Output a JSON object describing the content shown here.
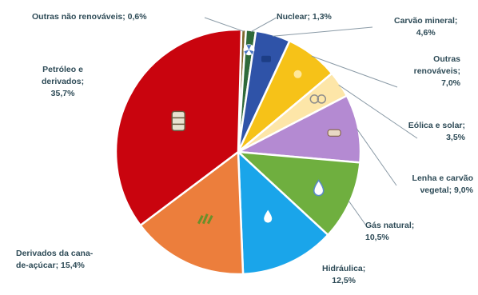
{
  "chart_data": {
    "type": "pie",
    "title": "",
    "slices": [
      {
        "name": "Outras não renováveis",
        "value": 0.6,
        "color": "#7f6a2e",
        "label_lines": [
          "Outras não renováveis; 0,6%"
        ]
      },
      {
        "name": "Nuclear",
        "value": 1.3,
        "color": "#2f6a3a",
        "label_lines": [
          "Nuclear; 1,3%"
        ]
      },
      {
        "name": "Carvão mineral",
        "value": 4.6,
        "color": "#2f53a8",
        "label_lines": [
          "Carvão mineral;",
          "4,6%"
        ]
      },
      {
        "name": "Outras renováveis",
        "value": 7.0,
        "color": "#f6c218",
        "label_lines": [
          "Outras",
          "renováveis;",
          "7,0%"
        ]
      },
      {
        "name": "Eólica e solar",
        "value": 3.5,
        "color": "#fde6a8",
        "label_lines": [
          "Eólica e solar;",
          "3,5%"
        ]
      },
      {
        "name": "Lenha e carvão vegetal",
        "value": 9.0,
        "color": "#b48ad2",
        "label_lines": [
          "Lenha e carvão",
          "vegetal; 9,0%"
        ]
      },
      {
        "name": "Gás natural",
        "value": 10.5,
        "color": "#6faf3f",
        "label_lines": [
          "Gás natural;",
          "10,5%"
        ]
      },
      {
        "name": "Hidráulica",
        "value": 12.5,
        "color": "#1aa5ea",
        "label_lines": [
          "Hidráulica;",
          "12,5%"
        ]
      },
      {
        "name": "Derivados da cana-de-açúcar",
        "value": 15.4,
        "color": "#ec7e3c",
        "label_lines": [
          "Derivados da cana-",
          "de-açúcar; 15,4%"
        ]
      },
      {
        "name": "Petróleo e derivados",
        "value": 35.7,
        "color": "#c9040e",
        "label_lines": [
          "Petróleo e",
          "derivados;",
          "35,7%"
        ]
      }
    ],
    "icons": [
      "fan-icon",
      "coal-icon",
      "sun-icon",
      "wood-icon",
      "drop-icon",
      "water-drop-icon",
      "sugarcane-icon",
      "oil-barrel-icon"
    ],
    "legend": "none"
  }
}
